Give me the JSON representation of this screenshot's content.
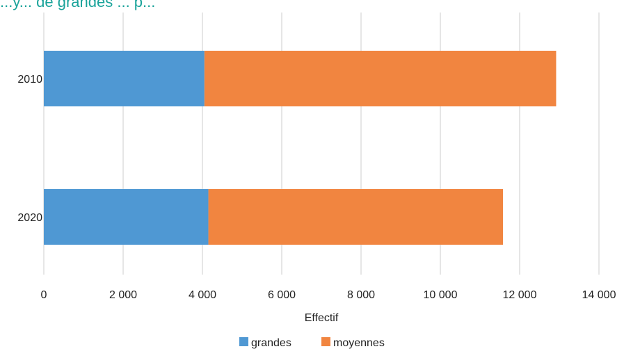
{
  "page": {
    "title": "...y... de grandes ... p...",
    "title_color": "#1aa39a"
  },
  "chart_data": {
    "type": "bar",
    "orientation": "horizontal",
    "stacked": true,
    "categories": [
      "2010",
      "2020"
    ],
    "series": [
      {
        "name": "grandes",
        "values": [
          4050,
          4150
        ],
        "color": "#4f98d3"
      },
      {
        "name": "moyennes",
        "values": [
          8870,
          7430
        ],
        "color": "#f18540"
      }
    ],
    "xlabel": "Effectif",
    "ylabel": "",
    "xlim": [
      0,
      14000
    ],
    "xticks": [
      0,
      2000,
      4000,
      6000,
      8000,
      10000,
      12000,
      14000
    ],
    "xtick_labels": [
      "0",
      "2 000",
      "4 000",
      "6 000",
      "8 000",
      "10 000",
      "12 000",
      "14 000"
    ],
    "grid": "vertical",
    "legend_position": "bottom"
  }
}
